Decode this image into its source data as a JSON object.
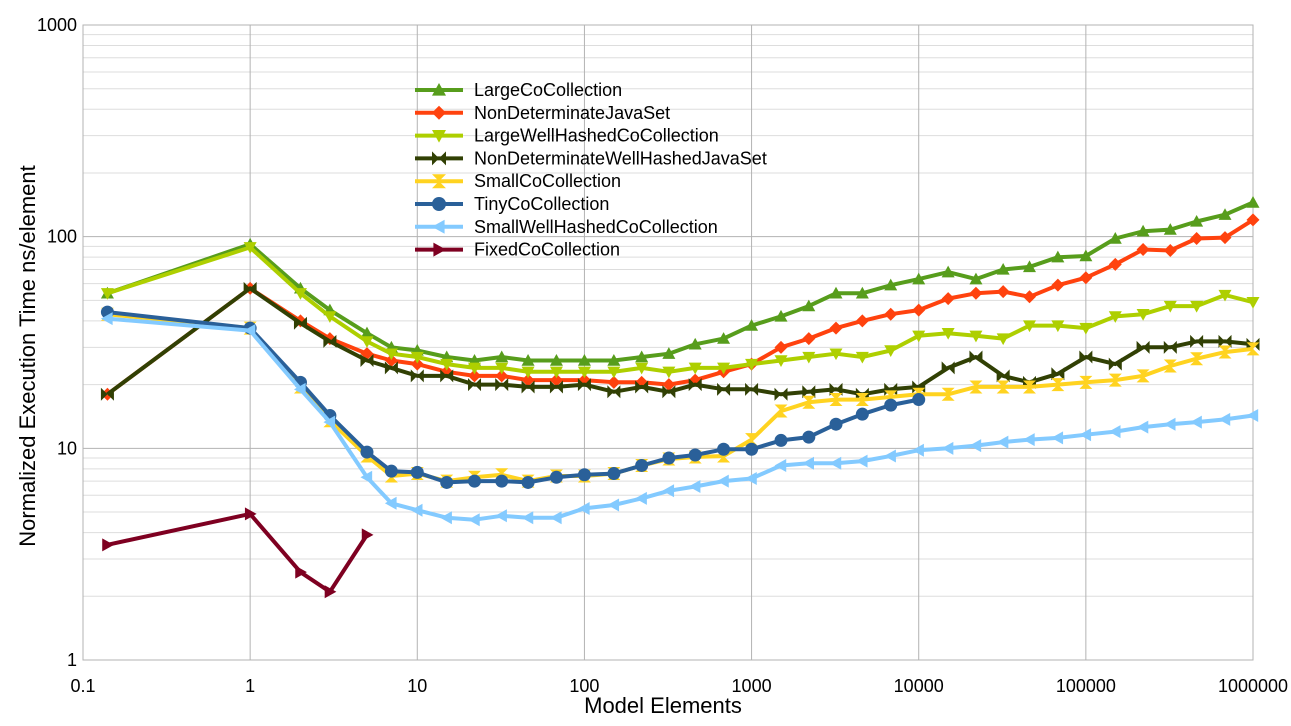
{
  "chart_data": {
    "type": "line",
    "x_scale": "log",
    "y_scale": "log",
    "xlabel": "Model Elements",
    "ylabel": "Normalized Execution Time ns/element",
    "xlim": [
      0.1,
      1000000
    ],
    "ylim": [
      1,
      1000
    ],
    "x_ticks": [
      0.1,
      1,
      10,
      100,
      1000,
      10000,
      100000,
      1000000
    ],
    "x_tick_labels": [
      "0.1",
      "1",
      "10",
      "100",
      "1000",
      "10000",
      "100000",
      "1000000"
    ],
    "y_ticks": [
      1,
      10,
      100,
      1000
    ],
    "y_tick_labels": [
      "1",
      "10",
      "100",
      "1000"
    ],
    "grid": true,
    "legend_position": "top-center",
    "series": [
      {
        "name": "LargeCoCollection",
        "color": "#579d1c",
        "marker": "triangle-up",
        "x": [
          0.14,
          1,
          2,
          3,
          5,
          7,
          10,
          15,
          22,
          32,
          46,
          68,
          100,
          150,
          220,
          320,
          460,
          680,
          1000,
          1500,
          2200,
          3200,
          4600,
          6800,
          10000,
          15000,
          22000,
          32000,
          46000,
          68000,
          100000,
          150000,
          220000,
          320000,
          460000,
          680000,
          1000000
        ],
        "y": [
          54,
          92,
          57,
          45,
          35,
          30,
          29,
          27,
          26,
          27,
          26,
          26,
          26,
          26,
          27,
          28,
          31,
          33,
          38,
          42,
          47,
          54,
          54,
          59,
          63,
          68,
          63,
          70,
          72,
          80,
          81,
          98,
          106,
          108,
          118,
          127,
          145
        ]
      },
      {
        "name": "NonDeterminateJavaSet",
        "color": "#ff420e",
        "marker": "diamond",
        "x": [
          0.14,
          1,
          2,
          3,
          5,
          7,
          10,
          15,
          22,
          32,
          46,
          68,
          100,
          150,
          220,
          320,
          460,
          680,
          1000,
          1500,
          2200,
          3200,
          4600,
          6800,
          10000,
          15000,
          22000,
          32000,
          46000,
          68000,
          100000,
          150000,
          220000,
          320000,
          460000,
          680000,
          1000000
        ],
        "y": [
          18,
          57,
          40,
          33,
          28,
          26,
          25,
          23,
          22,
          22,
          21,
          21,
          21,
          20.5,
          20.5,
          20,
          21,
          23,
          25,
          30,
          33,
          37,
          40,
          43,
          45,
          51,
          54,
          55,
          52,
          59,
          64,
          74,
          87,
          86,
          98,
          99,
          120
        ]
      },
      {
        "name": "LargeWellHashedCoCollection",
        "color": "#aecf00",
        "marker": "triangle-down",
        "x": [
          0.14,
          1,
          2,
          3,
          5,
          7,
          10,
          15,
          22,
          32,
          46,
          68,
          100,
          150,
          220,
          320,
          460,
          680,
          1000,
          1500,
          2200,
          3200,
          4600,
          6800,
          10000,
          15000,
          22000,
          32000,
          46000,
          68000,
          100000,
          150000,
          220000,
          320000,
          460000,
          680000,
          1000000
        ],
        "y": [
          54,
          89,
          54,
          42,
          32,
          28,
          27,
          25,
          24,
          24,
          23,
          23,
          23,
          23,
          24,
          23,
          24,
          24,
          25,
          26,
          27,
          28,
          27,
          29,
          34,
          35,
          34,
          33,
          38,
          38,
          37,
          42,
          43,
          47,
          47,
          53,
          49
        ]
      },
      {
        "name": "NonDeterminateWellHashedJavaSet",
        "color": "#314004",
        "marker": "bowtie",
        "x": [
          0.14,
          1,
          2,
          3,
          5,
          7,
          10,
          15,
          22,
          32,
          46,
          68,
          100,
          150,
          220,
          320,
          460,
          680,
          1000,
          1500,
          2200,
          3200,
          4600,
          6800,
          10000,
          15000,
          22000,
          32000,
          46000,
          68000,
          100000,
          150000,
          220000,
          320000,
          460000,
          680000,
          1000000
        ],
        "y": [
          18,
          57,
          39,
          32,
          26,
          24,
          22,
          22,
          20,
          20,
          19.5,
          19.5,
          20,
          18.5,
          19.5,
          18.5,
          20,
          19,
          19,
          18,
          18.5,
          19,
          18,
          19,
          19.5,
          24,
          27,
          22,
          20.5,
          22.5,
          27,
          25,
          30,
          30,
          32,
          32,
          31
        ]
      },
      {
        "name": "SmallCoCollection",
        "color": "#ffd320",
        "marker": "hourglass",
        "x": [
          0.14,
          1,
          2,
          3,
          5,
          7,
          10,
          15,
          22,
          32,
          46,
          68,
          100,
          150,
          220,
          320,
          460,
          680,
          1000,
          1500,
          2200,
          3200,
          4600,
          6800,
          10000,
          15000,
          22000,
          32000,
          46000,
          68000,
          100000,
          150000,
          220000,
          320000,
          460000,
          680000,
          1000000
        ],
        "y": [
          43,
          37,
          19.5,
          13.5,
          9.2,
          7.4,
          7.6,
          7.0,
          7.3,
          7.5,
          7.0,
          7.4,
          7.4,
          7.6,
          8.3,
          8.9,
          9.1,
          9.2,
          11,
          15,
          16.5,
          17,
          17,
          17.5,
          18,
          18,
          19.5,
          19.5,
          19.5,
          20,
          20.5,
          21,
          22,
          24.5,
          26.5,
          28.5,
          29.5
        ]
      },
      {
        "name": "TinyCoCollection",
        "color": "#2a6099",
        "marker": "circle",
        "x": [
          0.14,
          1,
          2,
          3,
          5,
          7,
          10,
          15,
          22,
          32,
          46,
          68,
          100,
          150,
          220,
          320,
          460,
          680,
          1000,
          1500,
          2200,
          3200,
          4600,
          6800,
          10000
        ],
        "y": [
          44,
          37,
          20.5,
          14.3,
          9.6,
          7.8,
          7.7,
          6.9,
          7.0,
          7.0,
          6.9,
          7.3,
          7.5,
          7.6,
          8.3,
          9.0,
          9.3,
          9.9,
          9.9,
          10.9,
          11.3,
          13,
          14.5,
          16,
          17
        ]
      },
      {
        "name": "SmallWellHashedCoCollection",
        "color": "#83caff",
        "marker": "triangle-left",
        "x": [
          0.14,
          1,
          2,
          3,
          5,
          7,
          10,
          15,
          22,
          32,
          46,
          68,
          100,
          150,
          220,
          320,
          460,
          680,
          1000,
          1500,
          2200,
          3200,
          4600,
          6800,
          10000,
          15000,
          22000,
          32000,
          46000,
          68000,
          100000,
          150000,
          220000,
          320000,
          460000,
          680000,
          1000000
        ],
        "y": [
          41,
          36,
          19,
          13.3,
          7.3,
          5.5,
          5.1,
          4.7,
          4.6,
          4.8,
          4.7,
          4.7,
          5.2,
          5.4,
          5.8,
          6.3,
          6.6,
          7.0,
          7.2,
          8.3,
          8.5,
          8.5,
          8.7,
          9.2,
          9.8,
          10.0,
          10.3,
          10.7,
          11.0,
          11.2,
          11.6,
          12.0,
          12.6,
          13.0,
          13.3,
          13.7,
          14.3
        ]
      },
      {
        "name": "FixedCoCollection",
        "color": "#7e0021",
        "marker": "triangle-right",
        "x": [
          0.14,
          1,
          2,
          3,
          5
        ],
        "y": [
          3.5,
          4.9,
          2.6,
          2.1,
          3.9
        ]
      }
    ]
  }
}
